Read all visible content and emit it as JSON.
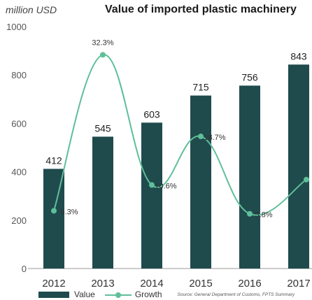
{
  "header": {
    "unit_label": "million USD",
    "title": "Value of imported plastic machinery"
  },
  "legend": {
    "value_label": "Value",
    "growth_label": "Growth",
    "source": "Source: General Department of Customs, FPTS Summary"
  },
  "colors": {
    "bar": "#1f4b4d",
    "growth_line": "#5fbf99",
    "axis_text": "#555555"
  },
  "chart_data": {
    "type": "bar",
    "title": "Value of imported plastic machinery",
    "ylabel": "million USD",
    "categories": [
      "2012",
      "2013",
      "2014",
      "2015",
      "2016",
      "2017"
    ],
    "series": [
      {
        "name": "Value",
        "type": "bar",
        "values": [
          412,
          545,
          603,
          715,
          756,
          843
        ]
      },
      {
        "name": "Growth",
        "type": "line",
        "values": [
          6.3,
          32.3,
          10.6,
          18.7,
          5.8,
          11.5
        ],
        "labels": [
          "6.3%",
          "32.3%",
          "10.6%",
          "18.7%",
          "5.8%",
          ""
        ]
      }
    ],
    "ylim": [
      0,
      1000
    ],
    "yticks": [
      0,
      200,
      400,
      600,
      800,
      1000
    ],
    "grid": false,
    "legend_position": "bottom"
  }
}
